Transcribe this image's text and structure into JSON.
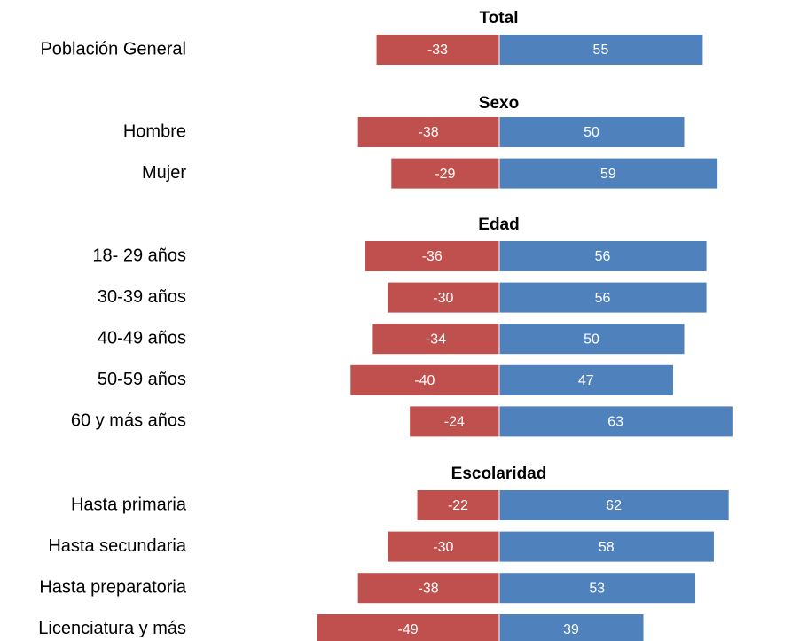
{
  "chart_data": {
    "type": "bar",
    "orientation": "horizontal-diverging",
    "groups": [
      {
        "title": "Total",
        "rows": [
          {
            "label": "Población General",
            "negative": -33,
            "positive": 55
          }
        ]
      },
      {
        "title": "Sexo",
        "rows": [
          {
            "label": "Hombre",
            "negative": -38,
            "positive": 50
          },
          {
            "label": "Mujer",
            "negative": -29,
            "positive": 59
          }
        ]
      },
      {
        "title": "Edad",
        "rows": [
          {
            "label": "18- 29 años",
            "negative": -36,
            "positive": 56
          },
          {
            "label": "30-39 años",
            "negative": -30,
            "positive": 56
          },
          {
            "label": "40-49 años",
            "negative": -34,
            "positive": 50
          },
          {
            "label": "50-59 años",
            "negative": -40,
            "positive": 47
          },
          {
            "label": "60 y más años",
            "negative": -24,
            "positive": 63
          }
        ]
      },
      {
        "title": "Escolaridad",
        "rows": [
          {
            "label": "Hasta primaria",
            "negative": -22,
            "positive": 62
          },
          {
            "label": "Hasta secundaria",
            "negative": -30,
            "positive": 58
          },
          {
            "label": "Hasta preparatoria",
            "negative": -38,
            "positive": 53
          },
          {
            "label": "Licenciatura y más",
            "negative": -49,
            "positive": 39
          }
        ]
      }
    ],
    "colors": {
      "negative": "#c0504d",
      "positive": "#4f81bd",
      "data_label": "#ffffff",
      "text": "#000000"
    }
  }
}
